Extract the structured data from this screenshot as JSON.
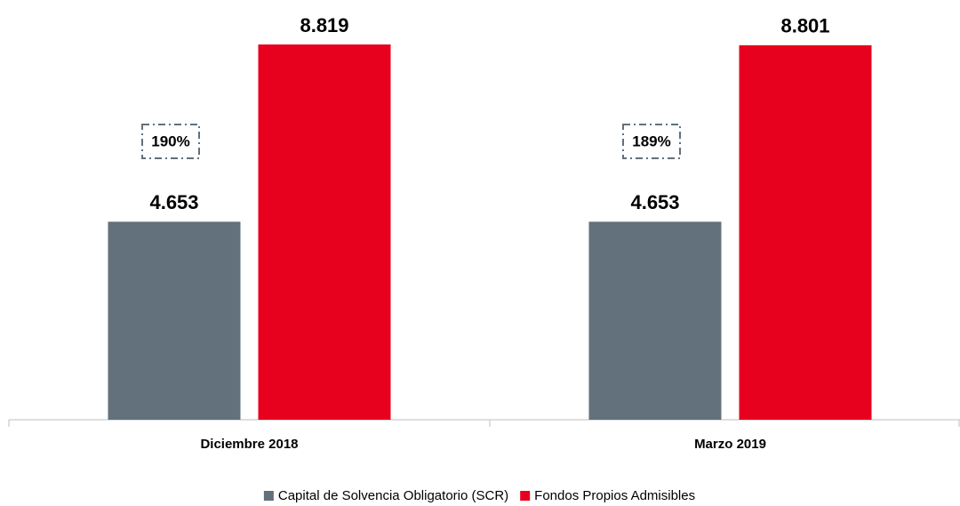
{
  "chart_data": {
    "type": "bar",
    "categories": [
      "Diciembre 2018",
      "Marzo 2019"
    ],
    "series": [
      {
        "name": "Capital de Solvencia Obligatorio (SCR)",
        "color": "#62717c",
        "values": [
          4.653,
          4.653
        ]
      },
      {
        "name": "Fondos Propios Admisibles",
        "color": "#e8001f",
        "values": [
          8.819,
          8.801
        ]
      }
    ],
    "annotations": [
      "190%",
      "189%"
    ],
    "legend": "bottom"
  }
}
